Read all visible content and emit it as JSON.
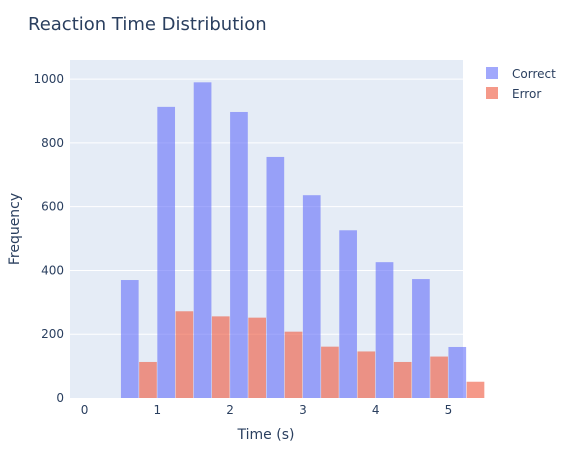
{
  "chart_data": {
    "type": "bar",
    "title": "Reaction Time Distribution",
    "xlabel": "Time (s)",
    "ylabel": "Frequency",
    "x_range": [
      -0.2,
      5.2
    ],
    "ylim": [
      0,
      1060
    ],
    "x_ticks": [
      0,
      1,
      2,
      3,
      4,
      5
    ],
    "y_ticks": [
      0,
      200,
      400,
      600,
      800,
      1000
    ],
    "bin_width": 0.5,
    "bins": [
      [
        0.5,
        1.0
      ],
      [
        1.0,
        1.5
      ],
      [
        1.5,
        2.0
      ],
      [
        2.0,
        2.5
      ],
      [
        2.5,
        3.0
      ],
      [
        3.0,
        3.5
      ],
      [
        3.5,
        4.0
      ],
      [
        4.0,
        4.5
      ],
      [
        4.5,
        5.0
      ],
      [
        5.0,
        5.5
      ]
    ],
    "grid": true,
    "legend_position": "top-right",
    "series": [
      {
        "name": "Correct",
        "color": "#636efa",
        "opacity": 0.6,
        "values": [
          370,
          913,
          990,
          897,
          756,
          636,
          526,
          426,
          373,
          160
        ]
      },
      {
        "name": "Error",
        "color": "#ef553b",
        "opacity": 0.6,
        "values": [
          113,
          272,
          256,
          252,
          208,
          161,
          146,
          113,
          130,
          51
        ]
      }
    ],
    "colors": {
      "plot_bg": "#e5ecf6",
      "grid": "#ffffff",
      "text": "#2a3f5f"
    }
  }
}
